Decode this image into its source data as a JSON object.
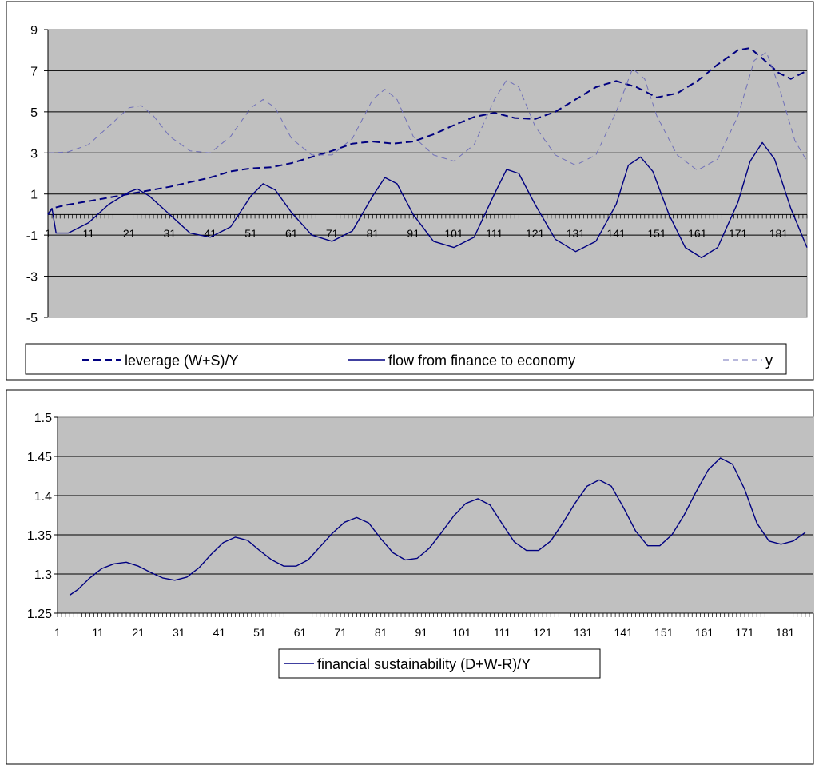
{
  "chart_data": [
    {
      "type": "line",
      "x_tick_labels": [
        "1",
        "11",
        "21",
        "31",
        "41",
        "51",
        "61",
        "71",
        "81",
        "91",
        "101",
        "111",
        "121",
        "131",
        "141",
        "151",
        "161",
        "171",
        "181"
      ],
      "y_tick_labels": [
        "9",
        "7",
        "5",
        "3",
        "1",
        "-1",
        "-3",
        "-5"
      ],
      "ylim": [
        -5,
        9
      ],
      "xlim": [
        1,
        188
      ],
      "grid": true,
      "legend_position": "bottom",
      "series": [
        {
          "name": "leverage (W+S)/Y",
          "style": "dashed-bold",
          "color": "#000080",
          "points": [
            [
              1,
              0
            ],
            [
              2,
              0.3
            ],
            [
              5,
              0.45
            ],
            [
              11,
              0.65
            ],
            [
              21,
              1.0
            ],
            [
              31,
              1.35
            ],
            [
              41,
              1.8
            ],
            [
              46,
              2.1
            ],
            [
              51,
              2.25
            ],
            [
              56,
              2.3
            ],
            [
              61,
              2.5
            ],
            [
              66,
              2.8
            ],
            [
              71,
              3.1
            ],
            [
              76,
              3.45
            ],
            [
              81,
              3.55
            ],
            [
              86,
              3.45
            ],
            [
              91,
              3.55
            ],
            [
              96,
              3.9
            ],
            [
              101,
              4.35
            ],
            [
              106,
              4.75
            ],
            [
              111,
              4.95
            ],
            [
              116,
              4.7
            ],
            [
              121,
              4.65
            ],
            [
              126,
              5.0
            ],
            [
              131,
              5.6
            ],
            [
              136,
              6.2
            ],
            [
              141,
              6.5
            ],
            [
              146,
              6.2
            ],
            [
              151,
              5.7
            ],
            [
              156,
              5.9
            ],
            [
              161,
              6.5
            ],
            [
              166,
              7.3
            ],
            [
              171,
              8.0
            ],
            [
              174,
              8.1
            ],
            [
              177,
              7.6
            ],
            [
              181,
              6.9
            ],
            [
              184,
              6.6
            ],
            [
              188,
              7.0
            ]
          ]
        },
        {
          "name": "flow from finance to economy",
          "style": "solid",
          "color": "#000080",
          "points": [
            [
              1,
              0
            ],
            [
              2,
              0.3
            ],
            [
              3,
              -0.9
            ],
            [
              6,
              -0.9
            ],
            [
              11,
              -0.4
            ],
            [
              16,
              0.5
            ],
            [
              21,
              1.1
            ],
            [
              23,
              1.25
            ],
            [
              26,
              0.9
            ],
            [
              31,
              0.0
            ],
            [
              36,
              -0.9
            ],
            [
              41,
              -1.1
            ],
            [
              46,
              -0.6
            ],
            [
              51,
              0.9
            ],
            [
              54,
              1.5
            ],
            [
              57,
              1.2
            ],
            [
              61,
              0.1
            ],
            [
              66,
              -1.0
            ],
            [
              71,
              -1.3
            ],
            [
              76,
              -0.8
            ],
            [
              81,
              0.9
            ],
            [
              84,
              1.8
            ],
            [
              87,
              1.5
            ],
            [
              91,
              0.0
            ],
            [
              96,
              -1.3
            ],
            [
              101,
              -1.6
            ],
            [
              106,
              -1.1
            ],
            [
              111,
              1.0
            ],
            [
              114,
              2.2
            ],
            [
              117,
              2.0
            ],
            [
              121,
              0.5
            ],
            [
              126,
              -1.2
            ],
            [
              131,
              -1.8
            ],
            [
              136,
              -1.3
            ],
            [
              141,
              0.5
            ],
            [
              144,
              2.4
            ],
            [
              147,
              2.8
            ],
            [
              150,
              2.1
            ],
            [
              154,
              0.0
            ],
            [
              158,
              -1.6
            ],
            [
              162,
              -2.1
            ],
            [
              166,
              -1.6
            ],
            [
              171,
              0.6
            ],
            [
              174,
              2.6
            ],
            [
              177,
              3.5
            ],
            [
              180,
              2.7
            ],
            [
              184,
              0.3
            ],
            [
              188,
              -1.6
            ]
          ]
        },
        {
          "name": "y",
          "style": "dashed-thin",
          "color": "#7070b8",
          "points": [
            [
              1,
              3.0
            ],
            [
              6,
              3.05
            ],
            [
              11,
              3.4
            ],
            [
              16,
              4.3
            ],
            [
              21,
              5.2
            ],
            [
              24,
              5.3
            ],
            [
              27,
              4.8
            ],
            [
              31,
              3.8
            ],
            [
              36,
              3.1
            ],
            [
              41,
              3.0
            ],
            [
              46,
              3.8
            ],
            [
              51,
              5.2
            ],
            [
              54,
              5.6
            ],
            [
              57,
              5.2
            ],
            [
              61,
              3.7
            ],
            [
              66,
              2.9
            ],
            [
              71,
              2.9
            ],
            [
              76,
              3.7
            ],
            [
              81,
              5.6
            ],
            [
              84,
              6.1
            ],
            [
              87,
              5.6
            ],
            [
              91,
              3.8
            ],
            [
              96,
              2.9
            ],
            [
              101,
              2.6
            ],
            [
              106,
              3.4
            ],
            [
              111,
              5.6
            ],
            [
              114,
              6.55
            ],
            [
              117,
              6.2
            ],
            [
              121,
              4.3
            ],
            [
              126,
              2.9
            ],
            [
              131,
              2.4
            ],
            [
              136,
              2.9
            ],
            [
              141,
              5.0
            ],
            [
              145,
              7.1
            ],
            [
              148,
              6.6
            ],
            [
              151,
              4.8
            ],
            [
              156,
              2.9
            ],
            [
              161,
              2.15
            ],
            [
              166,
              2.7
            ],
            [
              171,
              4.8
            ],
            [
              175,
              7.5
            ],
            [
              178,
              7.9
            ],
            [
              181,
              6.3
            ],
            [
              185,
              3.6
            ],
            [
              188,
              2.6
            ]
          ]
        }
      ]
    },
    {
      "type": "line",
      "x_tick_labels": [
        "1",
        "11",
        "21",
        "31",
        "41",
        "51",
        "61",
        "71",
        "81",
        "91",
        "101",
        "111",
        "121",
        "131",
        "141",
        "151",
        "161",
        "171",
        "181"
      ],
      "y_tick_labels": [
        "1.5",
        "1.45",
        "1.4",
        "1.35",
        "1.3",
        "1.25"
      ],
      "ylim": [
        1.25,
        1.5
      ],
      "xlim": [
        1,
        188
      ],
      "grid": true,
      "legend_position": "bottom",
      "series": [
        {
          "name": "financial sustainability (D+W-R)/Y",
          "style": "solid",
          "color": "#000080",
          "points": [
            [
              4,
              1.273
            ],
            [
              6,
              1.28
            ],
            [
              9,
              1.295
            ],
            [
              12,
              1.307
            ],
            [
              15,
              1.313
            ],
            [
              18,
              1.315
            ],
            [
              21,
              1.31
            ],
            [
              24,
              1.302
            ],
            [
              27,
              1.295
            ],
            [
              30,
              1.292
            ],
            [
              33,
              1.296
            ],
            [
              36,
              1.308
            ],
            [
              39,
              1.325
            ],
            [
              42,
              1.34
            ],
            [
              45,
              1.347
            ],
            [
              48,
              1.343
            ],
            [
              51,
              1.33
            ],
            [
              54,
              1.318
            ],
            [
              57,
              1.31
            ],
            [
              60,
              1.31
            ],
            [
              63,
              1.318
            ],
            [
              66,
              1.335
            ],
            [
              69,
              1.352
            ],
            [
              72,
              1.366
            ],
            [
              75,
              1.372
            ],
            [
              78,
              1.365
            ],
            [
              81,
              1.345
            ],
            [
              84,
              1.327
            ],
            [
              87,
              1.318
            ],
            [
              90,
              1.32
            ],
            [
              93,
              1.333
            ],
            [
              96,
              1.353
            ],
            [
              99,
              1.374
            ],
            [
              102,
              1.39
            ],
            [
              105,
              1.396
            ],
            [
              108,
              1.388
            ],
            [
              111,
              1.364
            ],
            [
              114,
              1.341
            ],
            [
              117,
              1.33
            ],
            [
              120,
              1.33
            ],
            [
              123,
              1.342
            ],
            [
              126,
              1.365
            ],
            [
              129,
              1.39
            ],
            [
              132,
              1.412
            ],
            [
              135,
              1.42
            ],
            [
              138,
              1.412
            ],
            [
              141,
              1.385
            ],
            [
              144,
              1.355
            ],
            [
              147,
              1.336
            ],
            [
              150,
              1.336
            ],
            [
              153,
              1.35
            ],
            [
              156,
              1.375
            ],
            [
              159,
              1.405
            ],
            [
              162,
              1.433
            ],
            [
              165,
              1.448
            ],
            [
              168,
              1.44
            ],
            [
              171,
              1.408
            ],
            [
              174,
              1.365
            ],
            [
              177,
              1.342
            ],
            [
              180,
              1.338
            ],
            [
              183,
              1.342
            ],
            [
              186,
              1.353
            ]
          ]
        }
      ]
    }
  ]
}
